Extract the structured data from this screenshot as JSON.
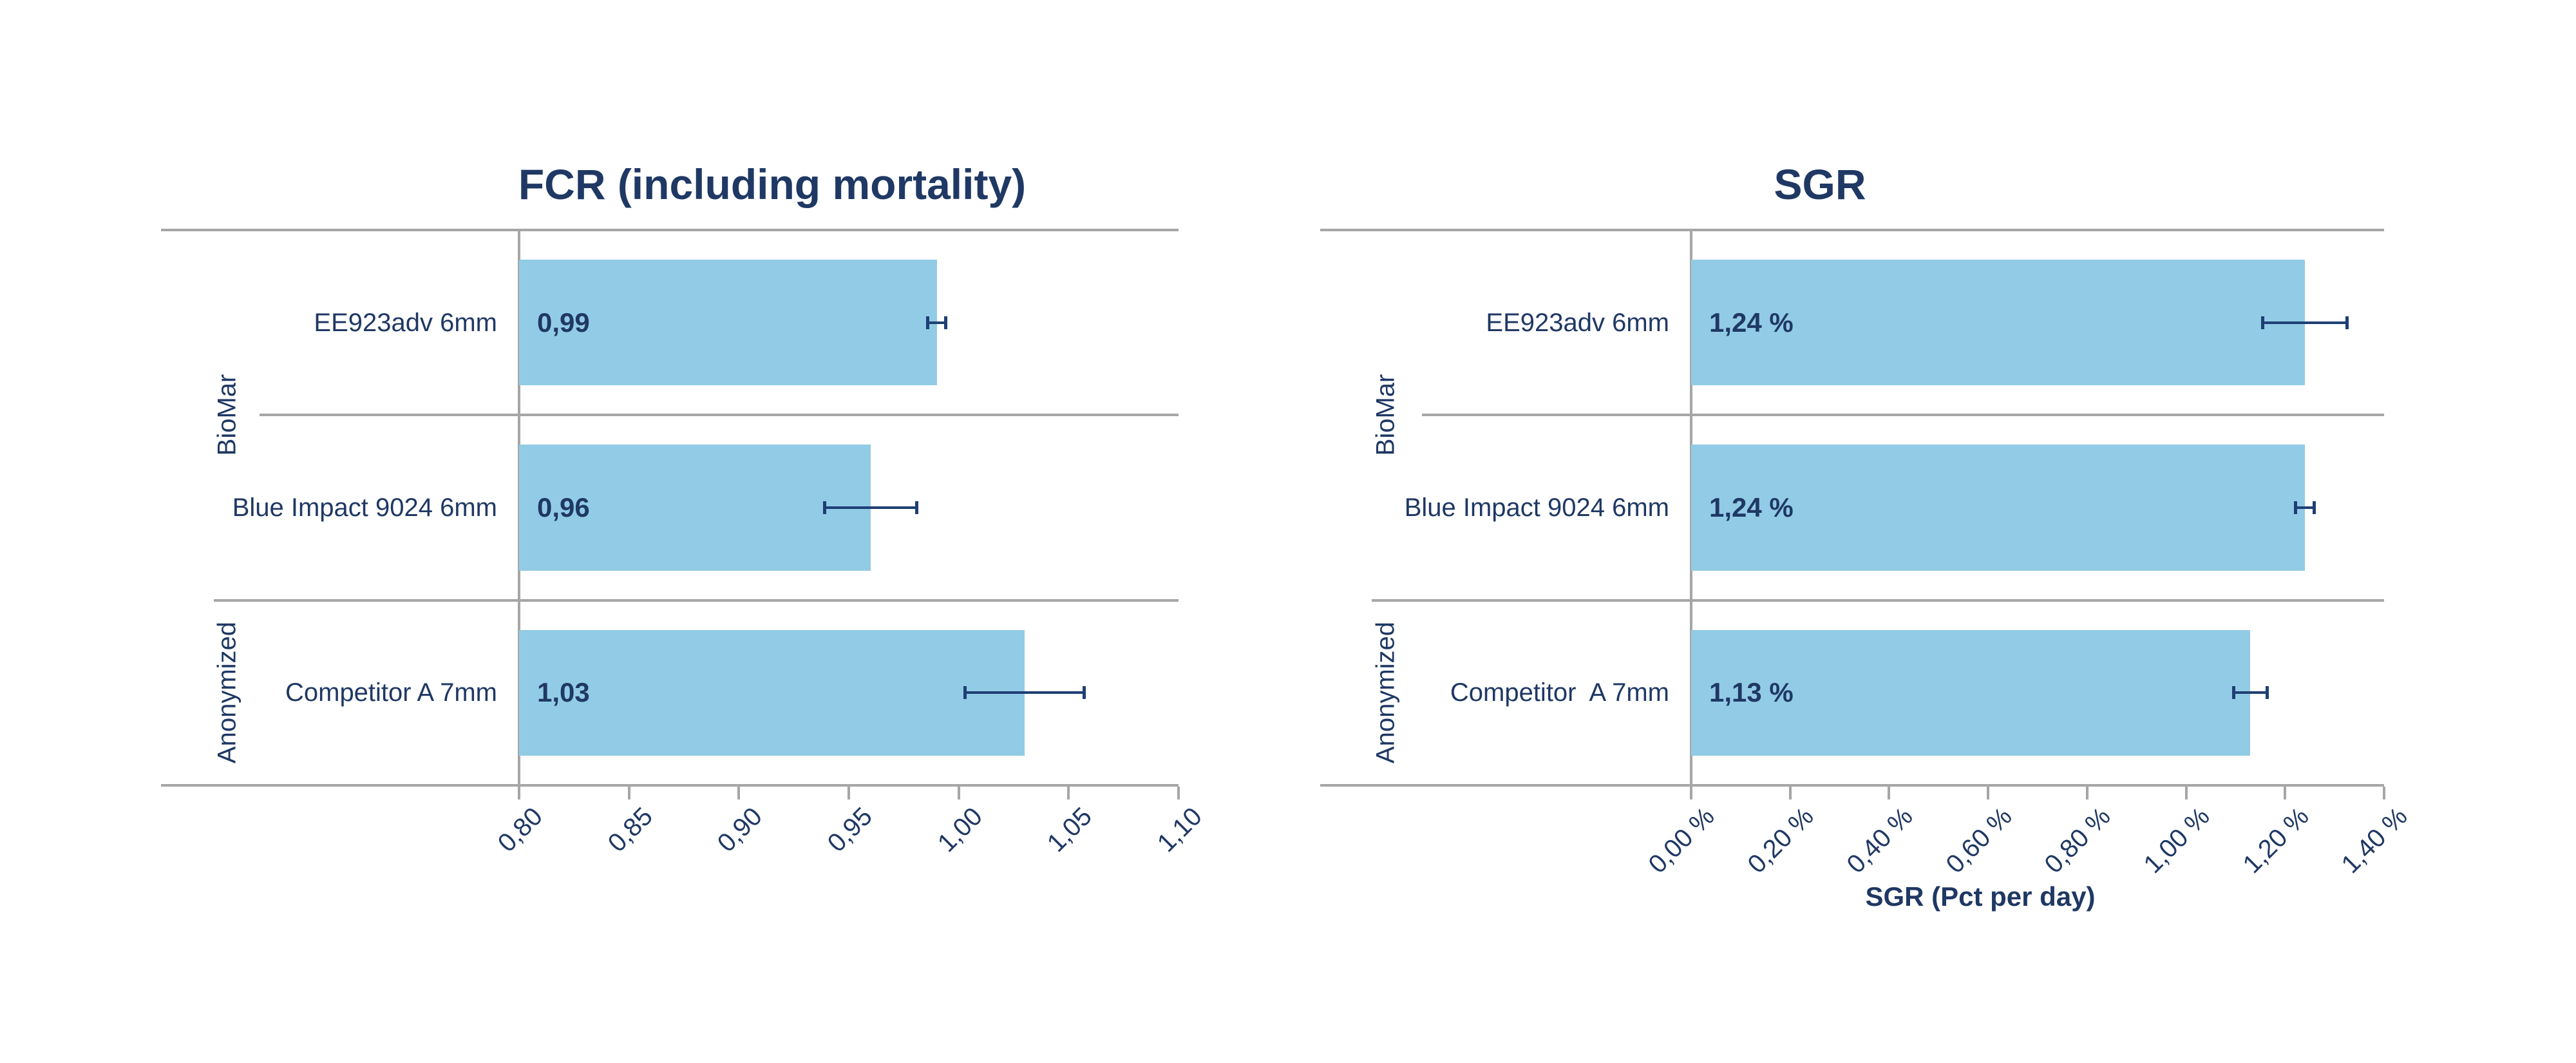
{
  "colors": {
    "bar_fill": "#92CBE5",
    "navy_text": "#1F3864",
    "error_bar": "#1E3F74",
    "axis_line": "#A6A6A6",
    "background": "#FFFFFF"
  },
  "chart_data": [
    {
      "type": "bar",
      "orientation": "horizontal",
      "title": "FCR (including mortality)",
      "xlabel": "",
      "ylabel": "",
      "grid": false,
      "legend": false,
      "xlim": [
        0.8,
        1.1
      ],
      "groups": [
        {
          "label": "BioMar",
          "rows": [
            0,
            1
          ]
        },
        {
          "label": "Anonymized",
          "rows": [
            2
          ]
        }
      ],
      "categories": [
        "EE923adv 6mm",
        "Blue Impact 9024 6mm",
        "Competitor A 7mm"
      ],
      "values": [
        0.99,
        0.96,
        1.03
      ],
      "value_labels": [
        "0,99",
        "0,96",
        "1,03"
      ],
      "error_bars_plus_minus": [
        0.004,
        0.021,
        0.027
      ],
      "xticks": [
        {
          "v": 0.8,
          "label": "0,80"
        },
        {
          "v": 0.85,
          "label": "0,85"
        },
        {
          "v": 0.9,
          "label": "0,90"
        },
        {
          "v": 0.95,
          "label": "0,95"
        },
        {
          "v": 1.0,
          "label": "1,00"
        },
        {
          "v": 1.05,
          "label": "1,05"
        },
        {
          "v": 1.1,
          "label": "1,10"
        }
      ]
    },
    {
      "type": "bar",
      "orientation": "horizontal",
      "title": "SGR",
      "xlabel": "SGR (Pct per day)",
      "ylabel": "",
      "grid": false,
      "legend": false,
      "xlim": [
        0.0,
        1.4
      ],
      "groups": [
        {
          "label": "BioMar",
          "rows": [
            0,
            1
          ]
        },
        {
          "label": "Anonymized",
          "rows": [
            2
          ]
        }
      ],
      "categories": [
        "EE923adv 6mm",
        "Blue Impact 9024 6mm",
        "Competitor  A 7mm"
      ],
      "values": [
        1.24,
        1.24,
        1.13
      ],
      "value_labels": [
        "1,24 %",
        "1,24 %",
        "1,13 %"
      ],
      "error_bars_plus_minus": [
        0.085,
        0.019,
        0.034
      ],
      "xticks": [
        {
          "v": 0.0,
          "label": "0,00 %"
        },
        {
          "v": 0.2,
          "label": "0,20 %"
        },
        {
          "v": 0.4,
          "label": "0,40 %"
        },
        {
          "v": 0.6,
          "label": "0,60 %"
        },
        {
          "v": 0.8,
          "label": "0,80 %"
        },
        {
          "v": 1.0,
          "label": "1,00 %"
        },
        {
          "v": 1.2,
          "label": "1,20 %"
        },
        {
          "v": 1.4,
          "label": "1,40 %"
        }
      ]
    }
  ]
}
